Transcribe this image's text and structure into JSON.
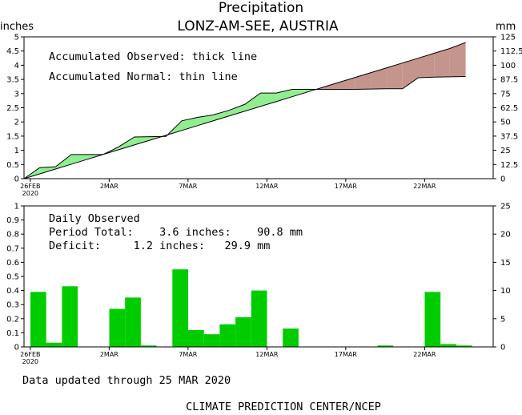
{
  "header": {
    "title": "Precipitation",
    "subtitle": "LONZ-AM-SEE, AUSTRIA"
  },
  "units": {
    "left": "inches",
    "right": "mm"
  },
  "top_panel": {
    "legend": [
      "Accumulated Observed: thick line",
      "Accumulated Normal: thin line"
    ]
  },
  "bottom_panel": {
    "title": "Daily Observed",
    "line1": "Period Total:    3.6 inches:    90.8 mm",
    "line2": "Deficit:     1.2 inches:   29.9 mm"
  },
  "footer": {
    "updated": "Data updated through 25 MAR 2020",
    "credit": "CLIMATE PREDICTION CENTER/NCEP"
  },
  "colors": {
    "surplus": "#90ee90",
    "deficit": "#c4958c",
    "bar": "#00cc00"
  },
  "chart_data": [
    {
      "type": "area",
      "title": "Accumulated precipitation",
      "x": [
        "26FEB",
        "27FEB",
        "28FEB",
        "29FEB",
        "1MAR",
        "2MAR",
        "3MAR",
        "4MAR",
        "5MAR",
        "6MAR",
        "7MAR",
        "8MAR",
        "9MAR",
        "10MAR",
        "11MAR",
        "12MAR",
        "13MAR",
        "14MAR",
        "15MAR",
        "16MAR",
        "17MAR",
        "18MAR",
        "19MAR",
        "20MAR",
        "21MAR",
        "22MAR",
        "23MAR",
        "24MAR",
        "25MAR"
      ],
      "xtick_labels": [
        "26FEB\n2020",
        "2MAR",
        "7MAR",
        "12MAR",
        "17MAR",
        "22MAR"
      ],
      "ylim_left": [
        0,
        5
      ],
      "yticks_left": [
        "0",
        "0.5",
        "1",
        "1.5",
        "2",
        "2.5",
        "3",
        "3.5",
        "4",
        "4.5",
        "5"
      ],
      "ylim_right": [
        0,
        125
      ],
      "yticks_right": [
        "0",
        "12.5",
        "25",
        "37.5",
        "50",
        "62.5",
        "75",
        "87.5",
        "100",
        "112.5",
        "125"
      ],
      "series": [
        {
          "name": "Accumulated Observed",
          "values": [
            0.0,
            0.39,
            0.42,
            0.85,
            0.85,
            0.85,
            1.12,
            1.47,
            1.48,
            1.49,
            2.04,
            2.16,
            2.25,
            2.41,
            2.62,
            3.02,
            3.02,
            3.15,
            3.15,
            3.15,
            3.15,
            3.15,
            3.16,
            3.17,
            3.17,
            3.56,
            3.58,
            3.59,
            3.6
          ]
        },
        {
          "name": "Accumulated Normal",
          "values": [
            0.0,
            0.17,
            0.34,
            0.51,
            0.68,
            0.85,
            1.02,
            1.19,
            1.36,
            1.53,
            1.7,
            1.87,
            2.04,
            2.21,
            2.38,
            2.55,
            2.72,
            2.89,
            3.06,
            3.23,
            3.4,
            3.57,
            3.74,
            3.91,
            4.08,
            4.25,
            4.42,
            4.59,
            4.8
          ]
        }
      ]
    },
    {
      "type": "bar",
      "title": "Daily Observed",
      "categories": [
        "26FEB",
        "27FEB",
        "28FEB",
        "29FEB",
        "1MAR",
        "2MAR",
        "3MAR",
        "4MAR",
        "5MAR",
        "6MAR",
        "7MAR",
        "8MAR",
        "9MAR",
        "10MAR",
        "11MAR",
        "12MAR",
        "13MAR",
        "14MAR",
        "15MAR",
        "16MAR",
        "17MAR",
        "18MAR",
        "19MAR",
        "20MAR",
        "21MAR",
        "22MAR",
        "23MAR",
        "24MAR",
        "25MAR"
      ],
      "xtick_labels": [
        "26FEB\n2020",
        "2MAR",
        "7MAR",
        "12MAR",
        "17MAR",
        "22MAR"
      ],
      "ylim_left": [
        0,
        1
      ],
      "yticks_left": [
        "0",
        "0.1",
        "0.2",
        "0.3",
        "0.4",
        "0.5",
        "0.6",
        "0.7",
        "0.8",
        "0.9",
        "1"
      ],
      "ylim_right": [
        0,
        25
      ],
      "yticks_right": [
        "0",
        "5",
        "10",
        "15",
        "20",
        "25"
      ],
      "values": [
        0.39,
        0.03,
        0.43,
        0.0,
        0.0,
        0.27,
        0.35,
        0.01,
        0.0,
        0.55,
        0.12,
        0.09,
        0.16,
        0.21,
        0.4,
        0.0,
        0.13,
        0.0,
        0.0,
        0.0,
        0.0,
        0.0,
        0.01,
        0.0,
        0.0,
        0.39,
        0.02,
        0.01,
        0.0
      ]
    }
  ]
}
